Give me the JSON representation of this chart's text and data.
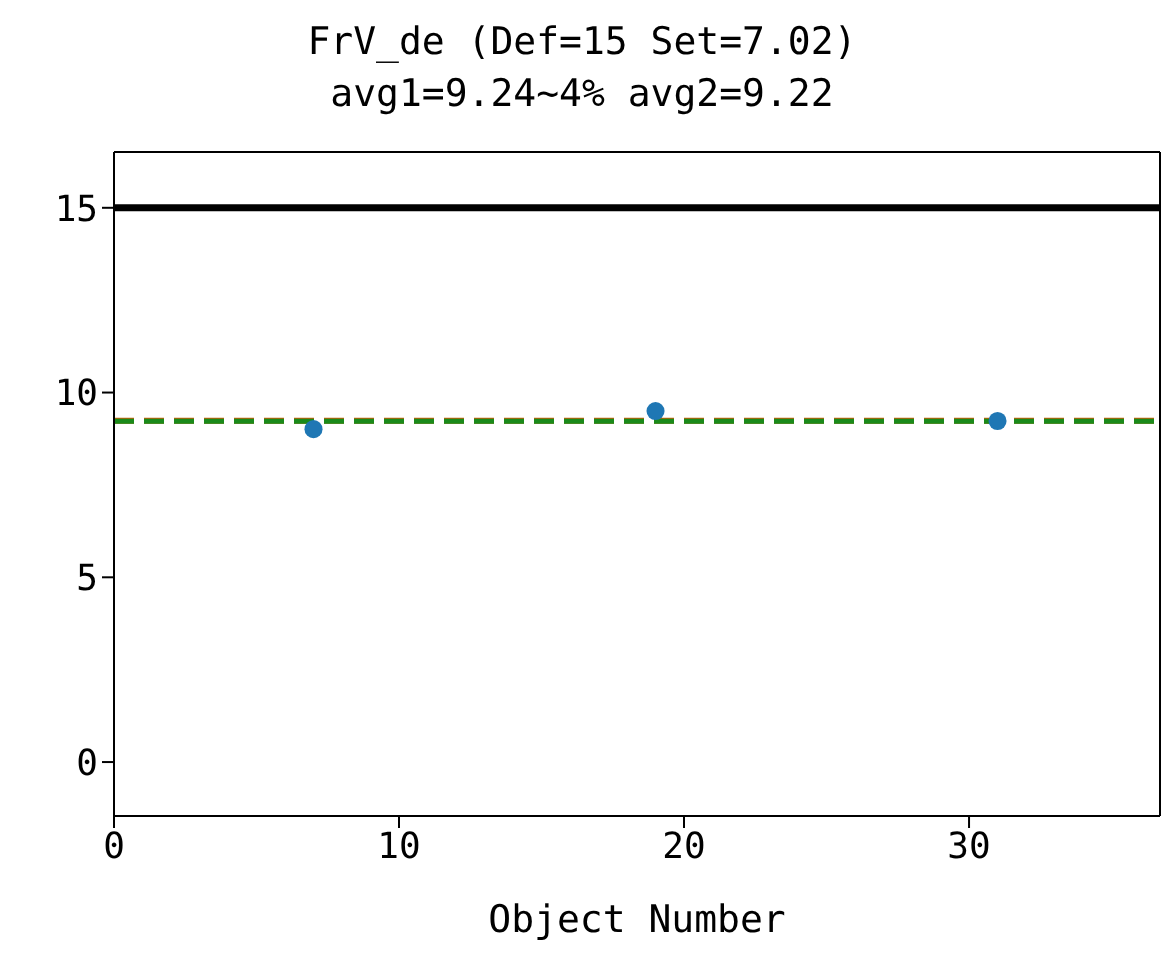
{
  "chart_data": {
    "type": "scatter",
    "title": "FrV_de (Def=15 Set=7.02)",
    "subtitle": "avg1=9.24~4% avg2=9.22",
    "xlabel": "Object Number",
    "x": [
      7,
      19,
      31
    ],
    "series": [
      {
        "color": "#1f77b4",
        "values": [
          9.01,
          9.5,
          9.23
        ]
      }
    ],
    "xlim": [
      0,
      36.7
    ],
    "xticks": [
      0,
      10,
      20,
      30
    ],
    "ylim": [
      -1.46,
      16.51
    ],
    "yticks": [
      0,
      5,
      10,
      15
    ],
    "grid": false,
    "legend": false,
    "marker": "circle",
    "ref_lines": [
      {
        "axis": "y",
        "value": 15,
        "color": "#000000",
        "line_style": "solid"
      },
      {
        "axis": "y",
        "value": 9.24,
        "color": "#c0600a",
        "line_style": "dashed"
      },
      {
        "axis": "y",
        "value": 9.22,
        "color": "#1a8a1a",
        "line_style": "dashed"
      }
    ]
  }
}
